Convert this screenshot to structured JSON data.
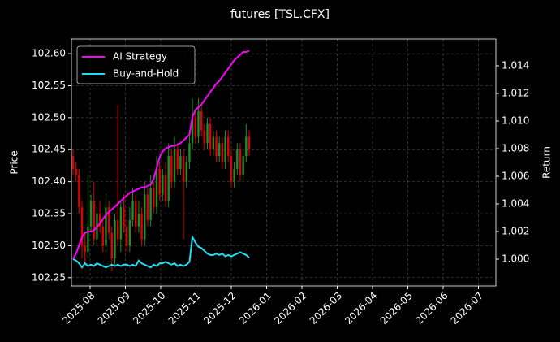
{
  "chart_data": {
    "type": "candlestick_with_returns",
    "title": "futures [TSL.CFX]",
    "ylabel": "Price",
    "y2label": "Return",
    "xticks": [
      "2025-08",
      "2025-09",
      "2025-10",
      "2025-11",
      "2025-12",
      "2026-01",
      "2026-02",
      "2026-03",
      "2026-04",
      "2026-05",
      "2026-06",
      "2026-07"
    ],
    "ylim": [
      102.237,
      102.623
    ],
    "yticks": [
      102.25,
      {
        "value": 102.3,
        "label": "102.30"
      },
      102.35,
      {
        "value": 102.4,
        "label": "102.40"
      },
      102.45,
      {
        "value": 102.5,
        "label": "102.50"
      },
      102.55,
      {
        "value": 102.6,
        "label": "102.60"
      }
    ],
    "y2lim": [
      0.99806,
      1.01594
    ],
    "y2ticks": [
      {
        "value": 1.0,
        "label": "1.000"
      },
      1.002,
      1.004,
      1.006,
      1.008,
      {
        "value": 1.01,
        "label": "1.010"
      },
      1.012,
      1.014
    ],
    "grid": true,
    "legend": "upper left",
    "up_color": "#1f8f1f",
    "down_color": "#e00000",
    "candles": {
      "open": [
        102.44,
        102.42,
        102.41,
        102.36,
        102.3,
        102.29,
        102.33,
        102.37,
        102.31,
        102.35,
        102.33,
        102.3,
        102.36,
        102.32,
        102.28,
        102.34,
        102.31,
        102.36,
        102.33,
        102.3,
        102.34,
        102.37,
        102.33,
        102.35,
        102.31,
        102.38,
        102.34,
        102.39,
        102.36,
        102.42,
        102.38,
        102.41,
        102.37,
        102.44,
        102.4,
        102.45,
        102.42,
        102.44,
        102.4,
        102.43,
        102.46,
        102.5,
        102.47,
        102.51,
        102.48,
        102.46,
        102.49,
        102.45,
        102.47,
        102.44,
        102.46,
        102.43,
        102.47,
        102.44,
        102.4,
        102.42,
        102.45,
        102.41,
        102.44,
        102.47
      ],
      "high": [
        102.45,
        102.43,
        102.42,
        102.37,
        102.32,
        102.41,
        102.38,
        102.4,
        102.36,
        102.37,
        102.34,
        102.38,
        102.37,
        102.33,
        102.35,
        102.52,
        102.37,
        102.38,
        102.34,
        102.36,
        102.39,
        102.38,
        102.37,
        102.36,
        102.4,
        102.39,
        102.41,
        102.4,
        102.44,
        102.43,
        102.42,
        102.43,
        102.46,
        102.45,
        102.47,
        102.46,
        102.45,
        102.45,
        102.44,
        102.48,
        102.53,
        102.51,
        102.53,
        102.52,
        102.49,
        102.5,
        102.5,
        102.48,
        102.48,
        102.47,
        102.47,
        102.48,
        102.48,
        102.45,
        102.43,
        102.46,
        102.46,
        102.45,
        102.49,
        102.48
      ],
      "low": [
        102.41,
        102.4,
        102.35,
        102.28,
        102.27,
        102.28,
        102.32,
        102.3,
        102.3,
        102.32,
        102.29,
        102.29,
        102.31,
        102.26,
        102.27,
        102.3,
        102.29,
        102.32,
        102.29,
        102.29,
        102.33,
        102.32,
        102.32,
        102.3,
        102.3,
        102.33,
        102.33,
        102.35,
        102.35,
        102.37,
        102.37,
        102.36,
        102.36,
        102.39,
        102.39,
        102.41,
        102.41,
        102.31,
        102.39,
        102.42,
        102.45,
        102.46,
        102.46,
        102.47,
        102.45,
        102.45,
        102.44,
        102.44,
        102.43,
        102.43,
        102.42,
        102.42,
        102.43,
        102.39,
        102.39,
        102.41,
        102.4,
        102.4,
        102.43,
        102.44
      ],
      "close": [
        102.42,
        102.41,
        102.36,
        102.3,
        102.29,
        102.33,
        102.37,
        102.31,
        102.35,
        102.33,
        102.3,
        102.36,
        102.32,
        102.28,
        102.34,
        102.31,
        102.36,
        102.33,
        102.3,
        102.34,
        102.37,
        102.33,
        102.35,
        102.31,
        102.38,
        102.34,
        102.39,
        102.36,
        102.42,
        102.38,
        102.41,
        102.37,
        102.44,
        102.4,
        102.45,
        102.42,
        102.44,
        102.4,
        102.43,
        102.46,
        102.5,
        102.47,
        102.51,
        102.48,
        102.46,
        102.49,
        102.45,
        102.47,
        102.44,
        102.46,
        102.43,
        102.47,
        102.44,
        102.4,
        102.42,
        102.45,
        102.41,
        102.44,
        102.47,
        102.45
      ]
    },
    "series": [
      {
        "name": "AI Strategy",
        "color": "#ff00ff",
        "axis": "y2",
        "values": [
          1.0,
          1.0004,
          1.001,
          1.0016,
          1.0019,
          1.002,
          1.002,
          1.0021,
          1.0023,
          1.0026,
          1.0029,
          1.0032,
          1.0034,
          1.0036,
          1.0038,
          1.004,
          1.0042,
          1.0044,
          1.0046,
          1.0048,
          1.0049,
          1.005,
          1.0051,
          1.0052,
          1.0052,
          1.0053,
          1.0054,
          1.0058,
          1.0066,
          1.0074,
          1.0078,
          1.008,
          1.0081,
          1.0082,
          1.0082,
          1.0083,
          1.0084,
          1.0086,
          1.0088,
          1.009,
          1.0103,
          1.0108,
          1.011,
          1.0112,
          1.0115,
          1.0118,
          1.0121,
          1.0124,
          1.0127,
          1.0129,
          1.0132,
          1.0135,
          1.0138,
          1.0141,
          1.0144,
          1.0146,
          1.0148,
          1.015,
          1.015,
          1.0151
        ]
      },
      {
        "name": "Buy-and-Hold",
        "color": "#1ee0f0",
        "axis": "y2",
        "values": [
          1.0,
          0.9999,
          0.9997,
          0.9994,
          0.9997,
          0.9995,
          0.9996,
          0.9995,
          0.9997,
          0.9996,
          0.9995,
          0.9994,
          0.9995,
          0.9996,
          0.9995,
          0.9996,
          0.9995,
          0.9996,
          0.9996,
          0.9995,
          0.9996,
          0.9995,
          0.9999,
          0.9997,
          0.9996,
          0.9995,
          0.9994,
          0.9996,
          0.9995,
          0.9997,
          0.9997,
          0.9998,
          0.9997,
          0.9996,
          0.9997,
          0.9995,
          0.9996,
          0.9995,
          0.9996,
          0.9998,
          1.0016,
          1.0012,
          1.0009,
          1.0008,
          1.0006,
          1.0004,
          1.0003,
          1.0003,
          1.0004,
          1.0003,
          1.0004,
          1.0002,
          1.0003,
          1.0002,
          1.0003,
          1.0004,
          1.0005,
          1.0004,
          1.0003,
          1.0001
        ]
      }
    ]
  }
}
